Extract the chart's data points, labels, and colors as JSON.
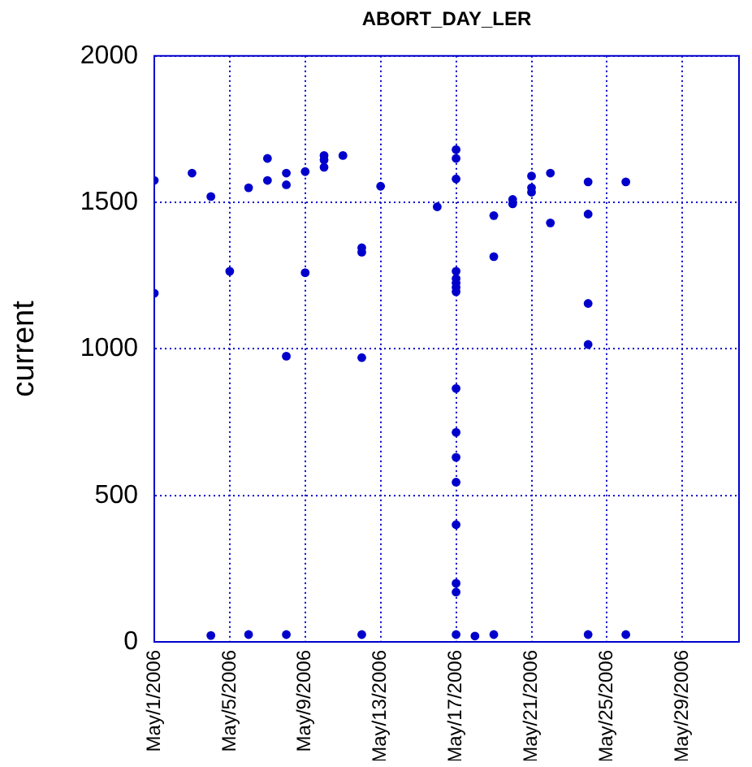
{
  "chart_data": {
    "type": "scatter",
    "title": "ABORT_DAY_LER",
    "ylabel": "current",
    "x": [
      "2006-05-01",
      "2006-05-01",
      "2006-05-03",
      "2006-05-04",
      "2006-05-04",
      "2006-05-05",
      "2006-05-06",
      "2006-05-06",
      "2006-05-07",
      "2006-05-07",
      "2006-05-08",
      "2006-05-08",
      "2006-05-08",
      "2006-05-08",
      "2006-05-09",
      "2006-05-09",
      "2006-05-10",
      "2006-05-10",
      "2006-05-10",
      "2006-05-11",
      "2006-05-12",
      "2006-05-12",
      "2006-05-12",
      "2006-05-12",
      "2006-05-13",
      "2006-05-16",
      "2006-05-17",
      "2006-05-17",
      "2006-05-17",
      "2006-05-17",
      "2006-05-17",
      "2006-05-17",
      "2006-05-17",
      "2006-05-17",
      "2006-05-17",
      "2006-05-17",
      "2006-05-17",
      "2006-05-17",
      "2006-05-17",
      "2006-05-17",
      "2006-05-17",
      "2006-05-17",
      "2006-05-18",
      "2006-05-19",
      "2006-05-19",
      "2006-05-19",
      "2006-05-20",
      "2006-05-20",
      "2006-05-21",
      "2006-05-21",
      "2006-05-21",
      "2006-05-22",
      "2006-05-22",
      "2006-05-24",
      "2006-05-24",
      "2006-05-24",
      "2006-05-24",
      "2006-05-24",
      "2006-05-26",
      "2006-05-26"
    ],
    "values": [
      1575,
      1190,
      1600,
      1520,
      22,
      1265,
      1550,
      25,
      1650,
      1575,
      1600,
      1560,
      975,
      25,
      1605,
      1260,
      1660,
      1645,
      1620,
      1660,
      1345,
      1330,
      970,
      25,
      1555,
      1485,
      1680,
      1650,
      1580,
      1265,
      1240,
      1225,
      1210,
      1195,
      865,
      715,
      630,
      545,
      400,
      200,
      170,
      25,
      20,
      1455,
      1315,
      25,
      1510,
      1495,
      1590,
      1550,
      1535,
      1600,
      1430,
      1570,
      1460,
      1155,
      1015,
      25,
      1570,
      25
    ],
    "color": "#0000cc",
    "marker": "circle",
    "xlim": [
      "2006-05-01",
      "2006-06-01"
    ],
    "xticks": [
      {
        "value": "2006-05-01",
        "label": "May/1/2006"
      },
      {
        "value": "2006-05-05",
        "label": "May/5/2006"
      },
      {
        "value": "2006-05-09",
        "label": "May/9/2006"
      },
      {
        "value": "2006-05-13",
        "label": "May/13/2006"
      },
      {
        "value": "2006-05-17",
        "label": "May/17/2006"
      },
      {
        "value": "2006-05-21",
        "label": "May/21/2006"
      },
      {
        "value": "2006-05-25",
        "label": "May/25/2006"
      },
      {
        "value": "2006-05-29",
        "label": "May/29/2006"
      }
    ],
    "ylim": [
      0,
      2000
    ],
    "yticks": [
      0,
      500,
      1000,
      1500,
      2000
    ],
    "grid": true
  }
}
